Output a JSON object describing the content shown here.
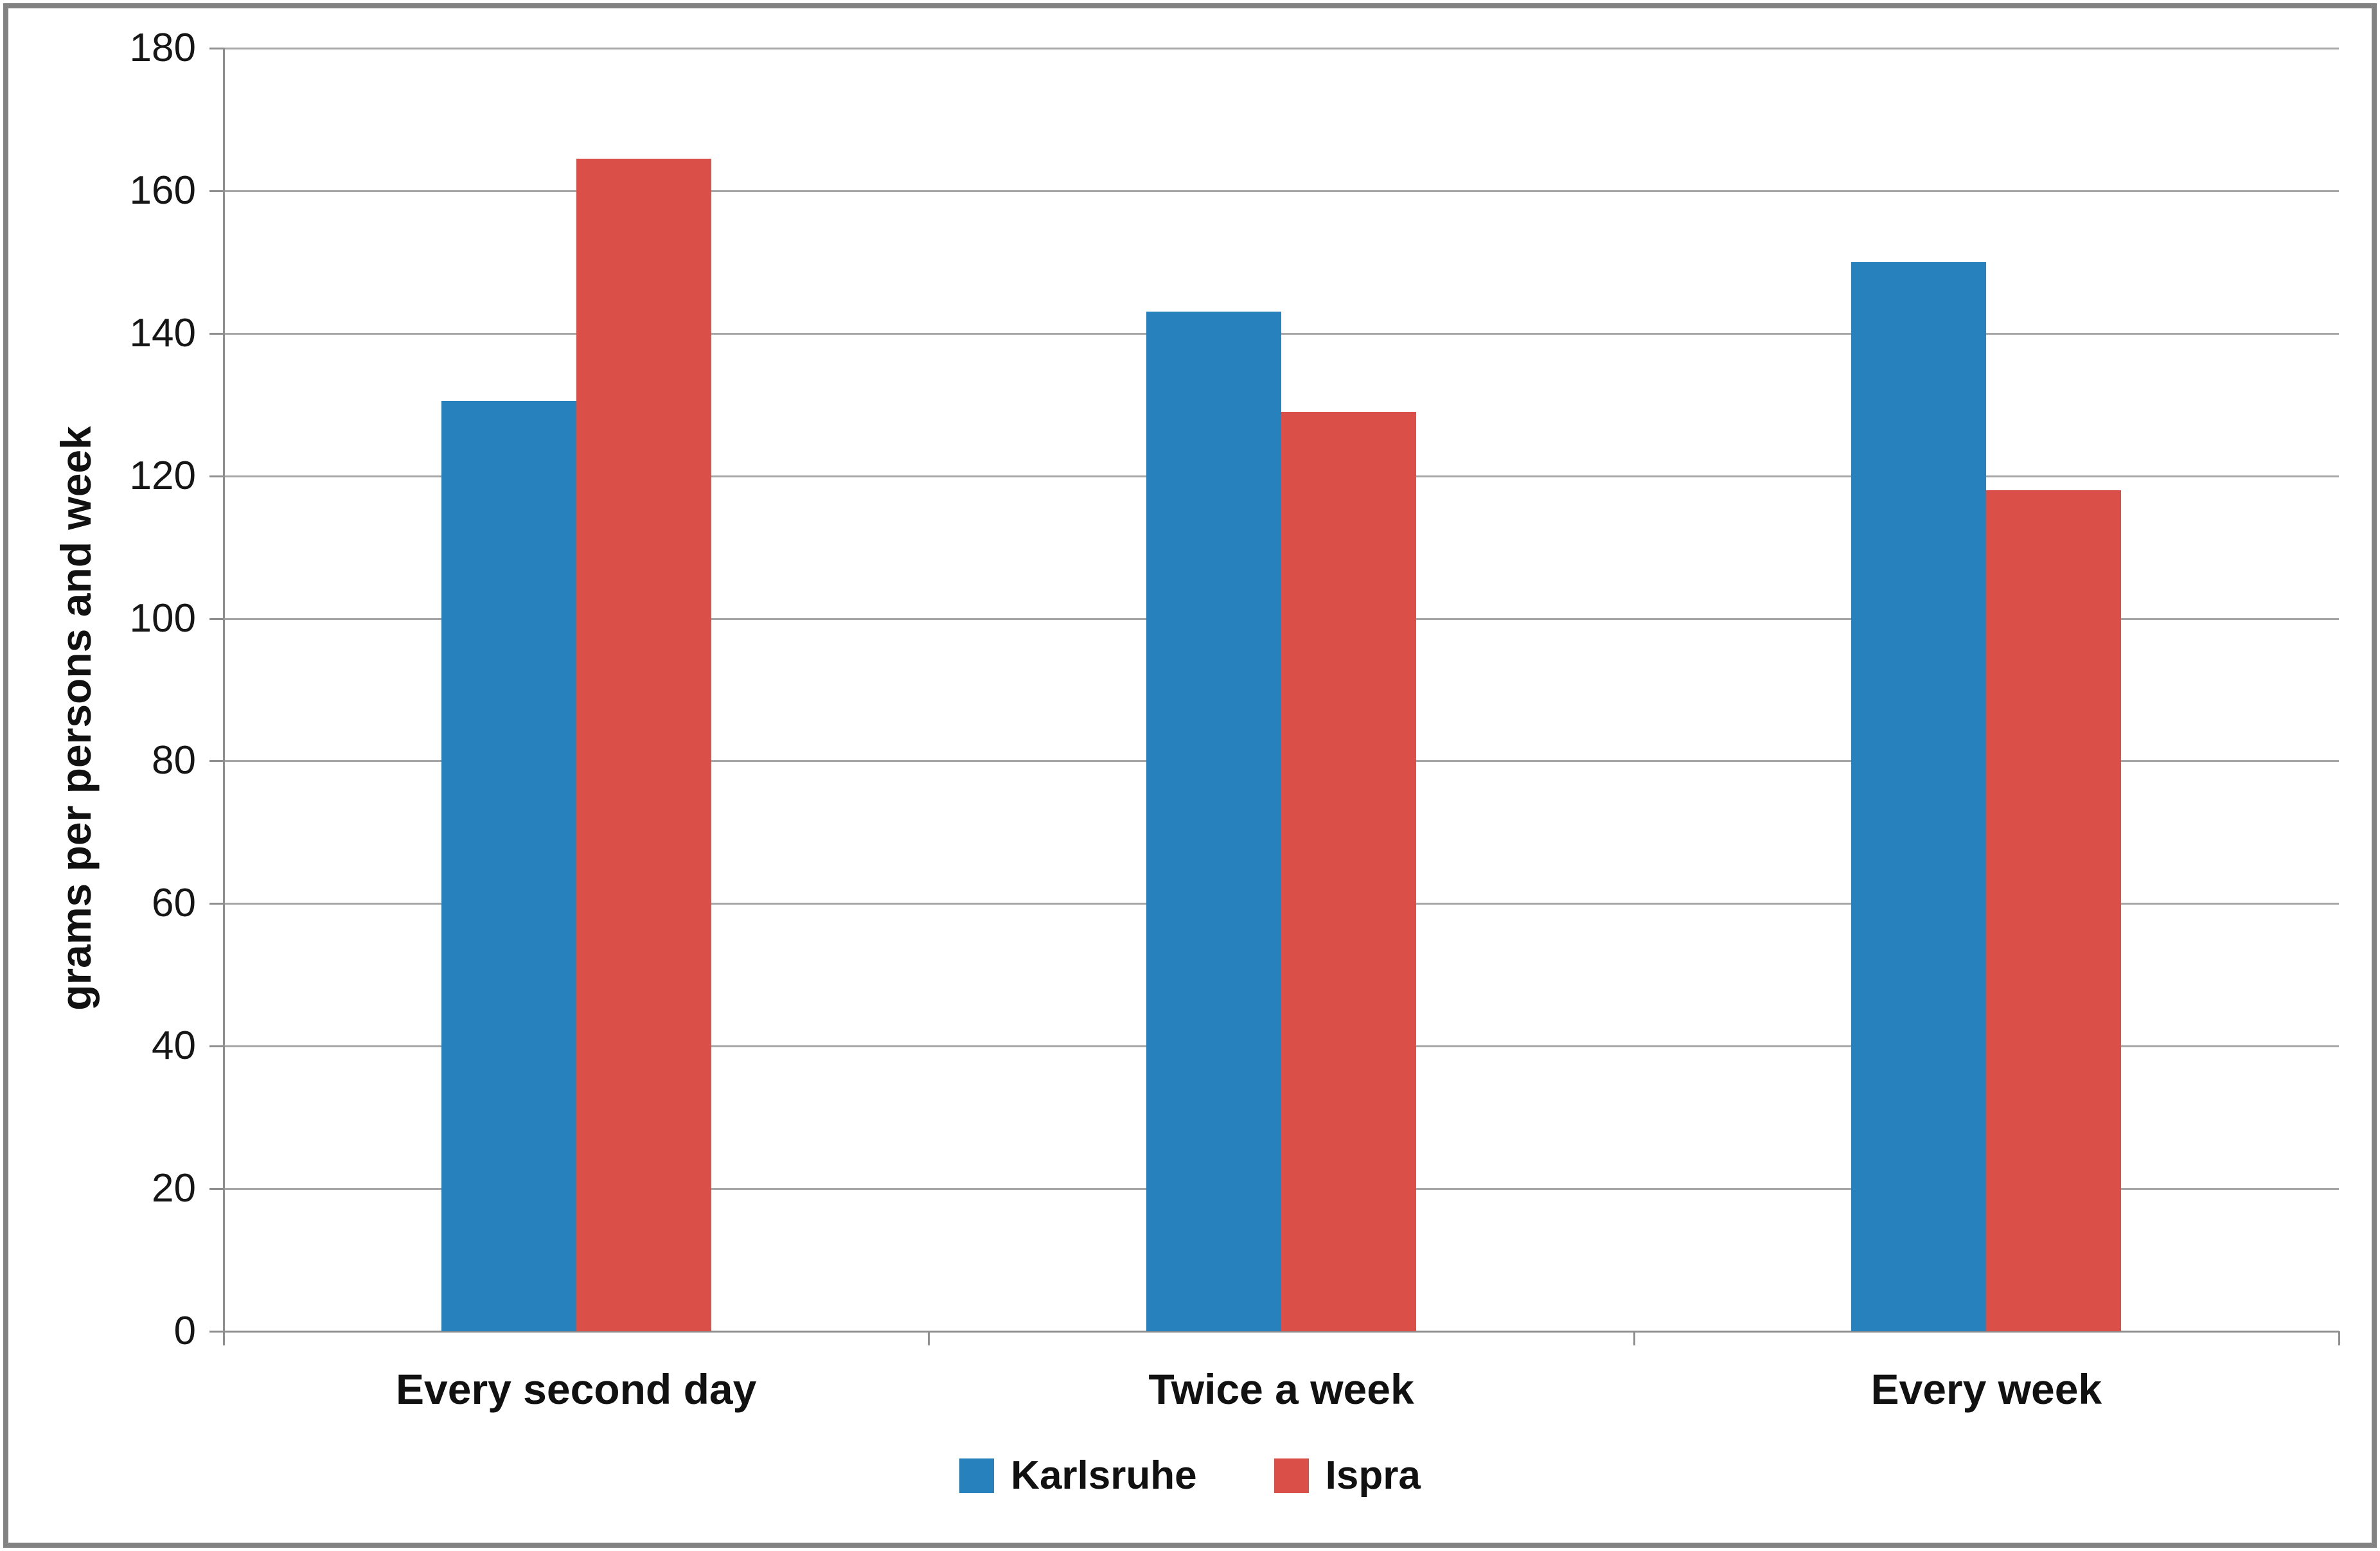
{
  "chart_data": {
    "type": "bar",
    "title": "",
    "xlabel": "",
    "ylabel": "grams per persons and week",
    "categories": [
      "Every second day",
      "Twice a week",
      "Every week"
    ],
    "series": [
      {
        "name": "Karlsruhe",
        "color": "#2781BD",
        "values": [
          130.5,
          143,
          150
        ]
      },
      {
        "name": "Ispra",
        "color": "#DA5048",
        "values": [
          164.5,
          129,
          118
        ]
      }
    ],
    "ylim": [
      0,
      180
    ],
    "ytick_step": 20,
    "ytick_labels": [
      "0",
      "20",
      "40",
      "60",
      "80",
      "100",
      "120",
      "140",
      "160",
      "180"
    ],
    "grid": true,
    "legend_position": "bottom"
  },
  "colors": {
    "background": "#FFFFFF",
    "frame_border": "#828282",
    "gridline": "#A6A6A6",
    "axis": "#8F8F8F",
    "text": "#161616"
  }
}
